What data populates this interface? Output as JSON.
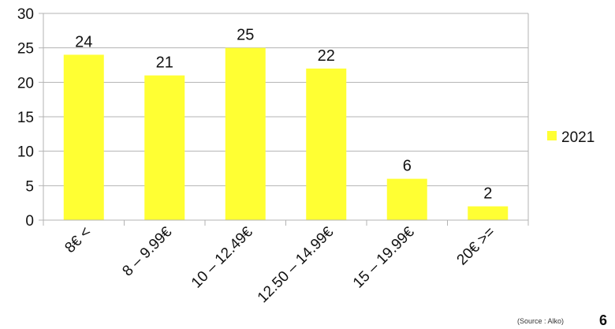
{
  "chart_data": {
    "type": "bar",
    "categories": [
      "8€ <",
      "8 – 9.99€",
      "10 – 12.49€",
      "12.50 – 14.99€",
      "15 – 19.99€",
      "20€ >="
    ],
    "series": [
      {
        "name": "2021",
        "values": [
          24,
          21,
          25,
          22,
          6,
          2
        ],
        "color": "#ffff33"
      }
    ],
    "data_labels": [
      "24",
      "21",
      "25",
      "22",
      "6",
      "2"
    ],
    "ylim": [
      0,
      30
    ],
    "yticks": [
      0,
      5,
      10,
      15,
      20,
      25,
      30
    ],
    "grid": true,
    "legend_position": "right",
    "title": "",
    "xlabel": "",
    "ylabel": ""
  },
  "footer": {
    "source": "(Source : Alko)",
    "page_number": "6"
  }
}
